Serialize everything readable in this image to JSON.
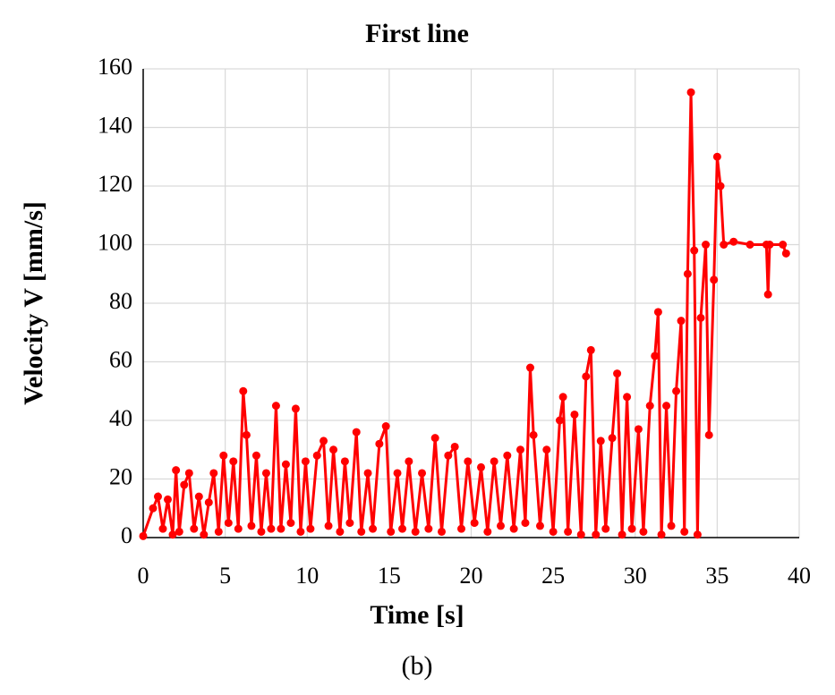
{
  "chart_data": {
    "type": "line",
    "title": "First line",
    "xlabel": "Time [s]",
    "ylabel": "Velocity V [mm/s]",
    "caption": "(b)",
    "xlim": [
      0,
      40
    ],
    "xticks": [
      0,
      5,
      10,
      15,
      20,
      25,
      30,
      35,
      40
    ],
    "ylim": [
      0,
      160
    ],
    "yticks": [
      0,
      20,
      40,
      60,
      80,
      100,
      120,
      140,
      160
    ],
    "grid": true,
    "series": [
      {
        "color": "#ff0000",
        "x": [
          0,
          0.6,
          0.9,
          1.2,
          1.5,
          1.8,
          2.0,
          2.2,
          2.5,
          2.8,
          3.1,
          3.4,
          3.7,
          4.0,
          4.3,
          4.6,
          4.9,
          5.2,
          5.5,
          5.8,
          6.1,
          6.3,
          6.6,
          6.9,
          7.2,
          7.5,
          7.8,
          8.1,
          8.4,
          8.7,
          9.0,
          9.3,
          9.6,
          9.9,
          10.2,
          10.6,
          11.0,
          11.3,
          11.6,
          12.0,
          12.3,
          12.6,
          13.0,
          13.3,
          13.7,
          14.0,
          14.4,
          14.8,
          15.1,
          15.5,
          15.8,
          16.2,
          16.6,
          17.0,
          17.4,
          17.8,
          18.2,
          18.6,
          19.0,
          19.4,
          19.8,
          20.2,
          20.6,
          21.0,
          21.4,
          21.8,
          22.2,
          22.6,
          23.0,
          23.3,
          23.6,
          23.8,
          24.2,
          24.6,
          25.0,
          25.4,
          25.6,
          25.9,
          26.3,
          26.7,
          27.0,
          27.3,
          27.6,
          27.9,
          28.2,
          28.6,
          28.9,
          29.2,
          29.5,
          29.8,
          30.2,
          30.5,
          30.9,
          31.2,
          31.4,
          31.6,
          31.9,
          32.2,
          32.5,
          32.8,
          33.0,
          33.2,
          33.4,
          33.6,
          33.8,
          34.0,
          34.3,
          34.5,
          34.8,
          35.0,
          35.2,
          35.4,
          36.0,
          37.0,
          38.0,
          38.1,
          38.2,
          39.0,
          39.2
        ],
        "values": [
          0.5,
          10,
          14,
          3,
          13,
          1,
          23,
          2,
          18,
          22,
          3,
          14,
          1,
          12,
          22,
          2,
          28,
          5,
          26,
          3,
          50,
          35,
          4,
          28,
          2,
          22,
          3,
          45,
          3,
          25,
          5,
          44,
          2,
          26,
          3,
          28,
          33,
          4,
          30,
          2,
          26,
          5,
          36,
          2,
          22,
          3,
          32,
          38,
          2,
          22,
          3,
          26,
          2,
          22,
          3,
          34,
          2,
          28,
          31,
          3,
          26,
          5,
          24,
          2,
          26,
          4,
          28,
          3,
          30,
          5,
          58,
          35,
          4,
          30,
          2,
          40,
          48,
          2,
          42,
          1,
          55,
          64,
          1,
          33,
          3,
          34,
          56,
          1,
          48,
          3,
          37,
          2,
          45,
          62,
          77,
          1,
          45,
          4,
          50,
          74,
          2,
          90,
          152,
          98,
          1,
          75,
          100,
          35,
          88,
          130,
          120,
          100,
          101,
          100,
          100,
          83,
          100,
          100,
          97
        ]
      }
    ]
  }
}
